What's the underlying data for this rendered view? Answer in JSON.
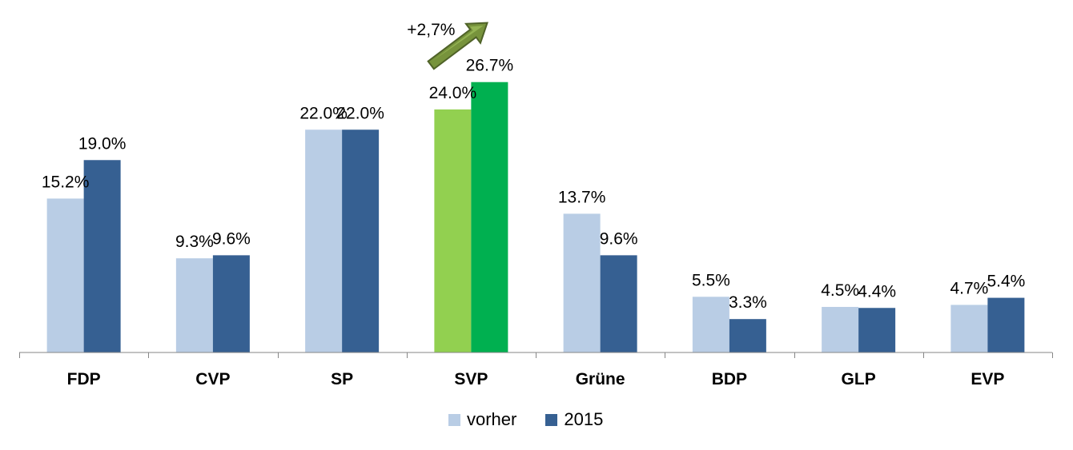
{
  "chart_data": {
    "type": "bar",
    "categories": [
      "FDP",
      "CVP",
      "SP",
      "SVP",
      "Grüne",
      "BDP",
      "GLP",
      "EVP"
    ],
    "series": [
      {
        "name": "vorher",
        "values": [
          15.2,
          9.3,
          22.0,
          24.0,
          13.7,
          5.5,
          4.5,
          4.7
        ],
        "labels": [
          "15.2%",
          "9.3%",
          "22.0%",
          "24.0%",
          "13.7%",
          "5.5%",
          "4.5%",
          "4.7%"
        ],
        "color": "#b9cde5",
        "highlight_color": "#92d050"
      },
      {
        "name": "2015",
        "values": [
          19.0,
          9.6,
          22.0,
          26.7,
          9.6,
          3.3,
          4.4,
          5.4
        ],
        "labels": [
          "19.0%",
          "9.6%",
          "22.0%",
          "26.7%",
          "9.6%",
          "3.3%",
          "4.4%",
          "5.4%"
        ],
        "color": "#366092",
        "highlight_color": "#00b050"
      }
    ],
    "highlight_category": "SVP",
    "annotation": {
      "text": "+2,7%",
      "category": "SVP",
      "arrow_color": "#77933c"
    },
    "legend_position": "bottom",
    "grid": false,
    "ylim": [
      0,
      30
    ]
  }
}
